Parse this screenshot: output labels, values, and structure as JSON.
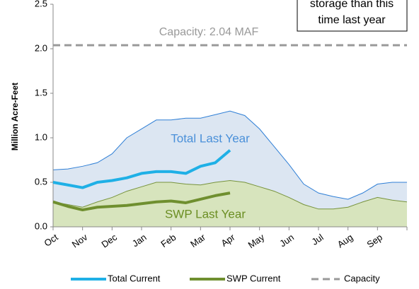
{
  "chart_data": {
    "type": "area",
    "y_label": "Million Acre-Feet",
    "x": [
      0,
      0.5,
      1,
      1.5,
      2,
      2.5,
      3,
      3.5,
      4,
      4.5,
      5,
      5.5,
      6,
      6.5,
      7,
      7.5,
      8,
      8.5,
      9,
      9.5,
      10,
      10.5,
      11,
      11.5,
      12
    ],
    "xlim": [
      0,
      12
    ],
    "xticks": [
      {
        "value": 0,
        "label": "Oct"
      },
      {
        "value": 1,
        "label": "Nov"
      },
      {
        "value": 2,
        "label": "Dec"
      },
      {
        "value": 3,
        "label": "Jan"
      },
      {
        "value": 4,
        "label": "Feb"
      },
      {
        "value": 5,
        "label": "Mar"
      },
      {
        "value": 6,
        "label": "Apr"
      },
      {
        "value": 7,
        "label": "May"
      },
      {
        "value": 8,
        "label": "Jun"
      },
      {
        "value": 9,
        "label": "Jul"
      },
      {
        "value": 10,
        "label": "Aug"
      },
      {
        "value": 11,
        "label": "Sep"
      }
    ],
    "ylim": [
      0,
      2.5
    ],
    "yticks": [
      {
        "value": 0,
        "label": "0.0"
      },
      0.5,
      {
        "value": 1,
        "label": "1.0"
      },
      1.5,
      {
        "value": 2,
        "label": "2.0"
      },
      2.5
    ],
    "areas": [
      {
        "name": "Total Last Year",
        "color": "#dce6f2",
        "line_color": "#2f7fd6",
        "label_color": "#4a90d9",
        "values": [
          0.64,
          0.65,
          0.68,
          0.72,
          0.82,
          1.0,
          1.1,
          1.2,
          1.2,
          1.22,
          1.22,
          1.26,
          1.3,
          1.25,
          1.1,
          0.9,
          0.7,
          0.48,
          0.38,
          0.34,
          0.31,
          0.38,
          0.48,
          0.5,
          0.5
        ]
      },
      {
        "name": "SWP Last Year",
        "color": "#d7e4bd",
        "line_color": "#77933c",
        "label_color": "#6b8e23",
        "values": [
          0.28,
          0.25,
          0.22,
          0.28,
          0.33,
          0.4,
          0.45,
          0.5,
          0.5,
          0.48,
          0.47,
          0.5,
          0.52,
          0.5,
          0.45,
          0.4,
          0.33,
          0.25,
          0.2,
          0.2,
          0.22,
          0.28,
          0.33,
          0.3,
          0.28
        ]
      }
    ],
    "series": [
      {
        "name": "Total Current",
        "color": "#1fb0e6",
        "values": [
          0.5,
          0.47,
          0.44,
          0.5,
          0.52,
          0.55,
          0.6,
          0.62,
          0.62,
          0.6,
          0.68,
          0.72,
          0.86,
          null,
          null,
          null,
          null,
          null,
          null,
          null,
          null,
          null,
          null,
          null,
          null
        ]
      },
      {
        "name": "SWP Current",
        "color": "#6f8f2f",
        "values": [
          0.28,
          0.23,
          0.19,
          0.22,
          0.23,
          0.24,
          0.26,
          0.28,
          0.29,
          0.27,
          0.31,
          0.35,
          0.38,
          null,
          null,
          null,
          null,
          null,
          null,
          null,
          null,
          null,
          null,
          null,
          null
        ]
      }
    ],
    "reference_line": {
      "name": "Capacity",
      "value": 2.04,
      "color": "#999999",
      "label": "Capacity: 2.04 MAF"
    },
    "callout": [
      "storage than this",
      "time last year"
    ]
  }
}
